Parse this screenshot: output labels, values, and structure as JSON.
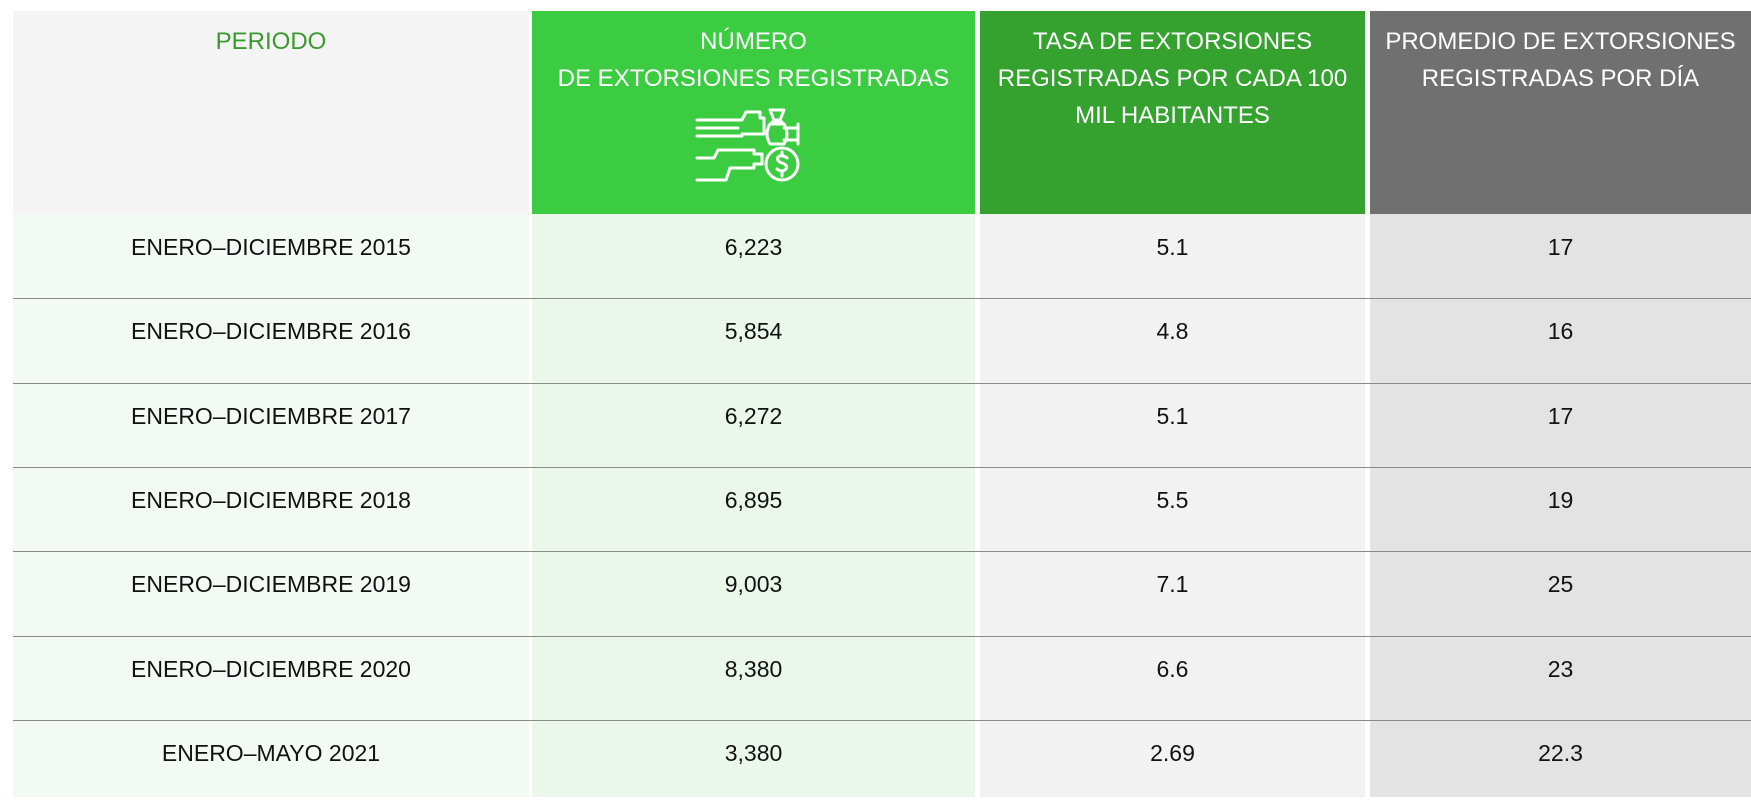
{
  "table": {
    "header": [
      "PERIODO",
      "NÚMERO\nDE EXTORSIONES REGISTRADAS",
      "TASA DE EXTORSIONES REGISTRADAS POR CADA 100 MIL HABITANTES",
      "PROMEDIO DE EXTORSIONES REGISTRADAS POR DÍA"
    ],
    "rows": [
      [
        "ENERO–DICIEMBRE 2015",
        "6,223",
        "5.1",
        "17"
      ],
      [
        "ENERO–DICIEMBRE 2016",
        "5,854",
        "4.8",
        "16"
      ],
      [
        "ENERO–DICIEMBRE 2017",
        "6,272",
        "5.1",
        "17"
      ],
      [
        "ENERO–DICIEMBRE 2018",
        "6,895",
        "5.5",
        "19"
      ],
      [
        "ENERO–DICIEMBRE 2019",
        "9,003",
        "7.1",
        "25"
      ],
      [
        "ENERO–DICIEMBRE 2020",
        "8,380",
        "6.6",
        "23"
      ],
      [
        "ENERO–MAYO 2021",
        "3,380",
        "2.69",
        "22.3"
      ]
    ]
  }
}
